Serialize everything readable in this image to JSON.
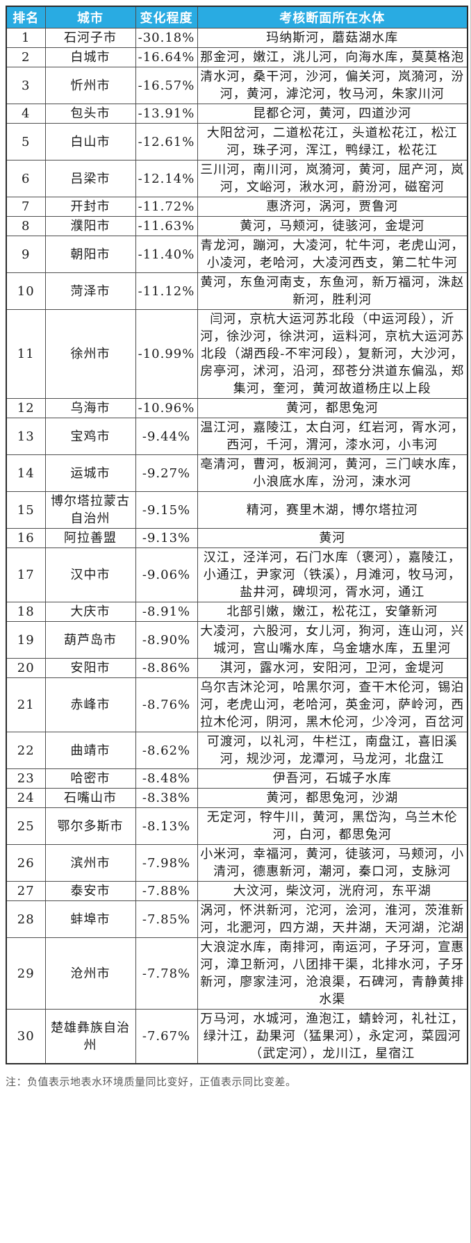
{
  "table": {
    "columns": [
      "排名",
      "城市",
      "变化程度",
      "考核断面所在水体"
    ],
    "rows": [
      {
        "rank": "1",
        "city": "石河子市",
        "change": "-30.18%",
        "waters": "玛纳斯河，蘑菇湖水库"
      },
      {
        "rank": "2",
        "city": "白城市",
        "change": "-16.64%",
        "waters": "那金河，嫩江，洮儿河，向海水库，莫莫格泡"
      },
      {
        "rank": "3",
        "city": "忻州市",
        "change": "-16.57%",
        "waters": "清水河，桑干河，沙河，偏关河，岚漪河，汾河，黄河，滹沱河，牧马河，朱家川河"
      },
      {
        "rank": "4",
        "city": "包头市",
        "change": "-13.91%",
        "waters": "昆都仑河，黄河，四道沙河"
      },
      {
        "rank": "5",
        "city": "白山市",
        "change": "-12.61%",
        "waters": "大阳岔河，二道松花江，头道松花江，松江河，珠子河，浑江，鸭绿江，松花江"
      },
      {
        "rank": "6",
        "city": "吕梁市",
        "change": "-12.14%",
        "waters": "三川河，南川河，岚漪河，黄河，屈产河，岚河，文峪河，湫水河，蔚汾河，磁窑河"
      },
      {
        "rank": "7",
        "city": "开封市",
        "change": "-11.72%",
        "waters": "惠济河，涡河，贾鲁河"
      },
      {
        "rank": "8",
        "city": "濮阳市",
        "change": "-11.63%",
        "waters": "黄河，马颊河，徒骇河，金堤河"
      },
      {
        "rank": "9",
        "city": "朝阳市",
        "change": "-11.40%",
        "waters": "青龙河，蹦河，大凌河，牤牛河，老虎山河，小凌河，老哈河，大凌河西支，第二牤牛河"
      },
      {
        "rank": "10",
        "city": "菏泽市",
        "change": "-11.12%",
        "waters": "黄河，东鱼河南支，东鱼河，新万福河，洙赵新河，胜利河"
      },
      {
        "rank": "11",
        "city": "徐州市",
        "change": "-10.99%",
        "waters": "闫河，京杭大运河苏北段（中运河段），沂河，徐沙河，徐洪河，运料河，京杭大运河苏北段（湖西段-不牢河段），复新河，大沙河，房亭河，沭河，沿河，邳苍分洪道东偏泓，郑集河，奎河，黄河故道杨庄以上段"
      },
      {
        "rank": "12",
        "city": "乌海市",
        "change": "-10.96%",
        "waters": "黄河，都思兔河"
      },
      {
        "rank": "13",
        "city": "宝鸡市",
        "change": "-9.44%",
        "waters": "温江河，嘉陵江，太白河，红岩河，胥水河，西河，千河，渭河，漆水河，小韦河"
      },
      {
        "rank": "14",
        "city": "运城市",
        "change": "-9.27%",
        "waters": "亳清河，曹河，板涧河，黄河，三门峡水库，小浪底水库，汾河，涑水河"
      },
      {
        "rank": "15",
        "city": "博尔塔拉蒙古自治州",
        "change": "-9.15%",
        "waters": "精河，赛里木湖，博尔塔拉河"
      },
      {
        "rank": "16",
        "city": "阿拉善盟",
        "change": "-9.13%",
        "waters": "黄河"
      },
      {
        "rank": "17",
        "city": "汉中市",
        "change": "-9.06%",
        "waters": "汉江，泾洋河，石门水库（褒河），嘉陵江，小通江，尹家河（铁溪），月滩河，牧马河，盐井河，碑坝河，胥水河，通江"
      },
      {
        "rank": "18",
        "city": "大庆市",
        "change": "-8.91%",
        "waters": "北部引嫩，嫩江，松花江，安肇新河"
      },
      {
        "rank": "19",
        "city": "葫芦岛市",
        "change": "-8.90%",
        "waters": "大凌河，六股河，女儿河，狗河，连山河，兴城河，宫山嘴水库，乌金塘水库，五里河"
      },
      {
        "rank": "20",
        "city": "安阳市",
        "change": "-8.86%",
        "waters": "淇河，露水河，安阳河，卫河，金堤河"
      },
      {
        "rank": "21",
        "city": "赤峰市",
        "change": "-8.76%",
        "waters": "乌尔吉沐沦河，哈黑尔河，查干木伦河，锡泊河，老虎山河，老哈河，英金河，萨岭河，西拉木伦河，阴河，黑木伦河，少冷河，百岔河"
      },
      {
        "rank": "22",
        "city": "曲靖市",
        "change": "-8.62%",
        "waters": "可渡河，以礼河，牛栏江，南盘江，喜旧溪河，规沙河，龙潭河，马龙河，北盘江"
      },
      {
        "rank": "23",
        "city": "哈密市",
        "change": "-8.48%",
        "waters": "伊吾河，石城子水库"
      },
      {
        "rank": "24",
        "city": "石嘴山市",
        "change": "-8.38%",
        "waters": "黄河，都思兔河，沙湖"
      },
      {
        "rank": "25",
        "city": "鄂尔多斯市",
        "change": "-8.13%",
        "waters": "无定河，牸牛川，黄河，黑岱沟，乌兰木伦河，白河，都思兔河"
      },
      {
        "rank": "26",
        "city": "滨州市",
        "change": "-7.98%",
        "waters": "小米河，幸福河，黄河，徒骇河，马颊河，小清河，德惠新河，潮河，秦口河，支脉河"
      },
      {
        "rank": "27",
        "city": "泰安市",
        "change": "-7.88%",
        "waters": "大汶河，柴汶河，洸府河，东平湖"
      },
      {
        "rank": "28",
        "city": "蚌埠市",
        "change": "-7.85%",
        "waters": "涡河，怀洪新河，沱河，浍河，淮河，茨淮新河，北淝河，四方湖，天井湖，天河湖，沱湖"
      },
      {
        "rank": "29",
        "city": "沧州市",
        "change": "-7.78%",
        "waters": "大浪淀水库，南排河，南运河，子牙河，宣惠河，漳卫新河，八团排干渠，北排水河，子牙新河，廖家洼河，沧浪渠，石碑河，青静黄排水渠"
      },
      {
        "rank": "30",
        "city": "楚雄彝族自治州",
        "change": "-7.67%",
        "waters": "万马河，水城河，渔泡江，蜻蛉河，礼社江，绿汁江，勐果河（猛果河），永定河，菜园河（武定河），龙川江，星宿江"
      }
    ]
  },
  "note": "注：负值表示地表水环境质量同比变好，正值表示同比变差。",
  "colors": {
    "header_bg": "#29ABE2",
    "header_text": "#FFFFFF",
    "grid_border": "#4D4D4D",
    "body_text": "#1A1A1A",
    "note_text": "#595959"
  }
}
